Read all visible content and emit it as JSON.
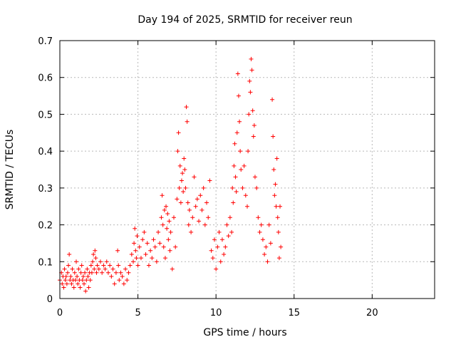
{
  "chart_data": {
    "type": "scatter",
    "title": "Day 194 of 2025, SRMTID for receiver reun",
    "xlabel": "GPS time / hours",
    "ylabel": "SRMTID / TECUs",
    "xlim": [
      0,
      24
    ],
    "ylim": [
      0,
      0.7
    ],
    "x_ticks": [
      0,
      5,
      10,
      15,
      20
    ],
    "x_tick_labels": [
      "0",
      "5",
      "10",
      "15",
      "20"
    ],
    "y_ticks": [
      0,
      0.1,
      0.2,
      0.3,
      0.4,
      0.5,
      0.6,
      0.7
    ],
    "y_tick_labels": [
      "0",
      "0.1",
      "0.2",
      "0.3",
      "0.4",
      "0.5",
      "0.6",
      "0.7"
    ],
    "grid": true,
    "marker": "+",
    "color": "#ff0000",
    "series": [
      {
        "name": "SRMTID",
        "points": [
          [
            0.0,
            0.05
          ],
          [
            0.1,
            0.07
          ],
          [
            0.15,
            0.04
          ],
          [
            0.2,
            0.06
          ],
          [
            0.25,
            0.03
          ],
          [
            0.3,
            0.08
          ],
          [
            0.35,
            0.05
          ],
          [
            0.4,
            0.06
          ],
          [
            0.45,
            0.04
          ],
          [
            0.5,
            0.07
          ],
          [
            0.55,
            0.09
          ],
          [
            0.6,
            0.12
          ],
          [
            0.65,
            0.05
          ],
          [
            0.7,
            0.06
          ],
          [
            0.75,
            0.04
          ],
          [
            0.8,
            0.08
          ],
          [
            0.85,
            0.05
          ],
          [
            0.9,
            0.03
          ],
          [
            0.95,
            0.07
          ],
          [
            1.0,
            0.05
          ],
          [
            1.05,
            0.1
          ],
          [
            1.1,
            0.06
          ],
          [
            1.15,
            0.04
          ],
          [
            1.2,
            0.08
          ],
          [
            1.25,
            0.05
          ],
          [
            1.3,
            0.03
          ],
          [
            1.35,
            0.07
          ],
          [
            1.4,
            0.09
          ],
          [
            1.45,
            0.05
          ],
          [
            1.5,
            0.06
          ],
          [
            1.55,
            0.04
          ],
          [
            1.6,
            0.07
          ],
          [
            1.65,
            0.02
          ],
          [
            1.7,
            0.05
          ],
          [
            1.75,
            0.08
          ],
          [
            1.8,
            0.06
          ],
          [
            1.85,
            0.03
          ],
          [
            1.9,
            0.07
          ],
          [
            1.95,
            0.05
          ],
          [
            2.0,
            0.09
          ],
          [
            2.05,
            0.07
          ],
          [
            2.1,
            0.1
          ],
          [
            2.15,
            0.12
          ],
          [
            2.2,
            0.08
          ],
          [
            2.25,
            0.13
          ],
          [
            2.3,
            0.11
          ],
          [
            2.35,
            0.07
          ],
          [
            2.4,
            0.09
          ],
          [
            2.5,
            0.08
          ],
          [
            2.6,
            0.1
          ],
          [
            2.7,
            0.07
          ],
          [
            2.8,
            0.09
          ],
          [
            2.9,
            0.08
          ],
          [
            3.0,
            0.1
          ],
          [
            3.1,
            0.07
          ],
          [
            3.2,
            0.09
          ],
          [
            3.3,
            0.06
          ],
          [
            3.4,
            0.08
          ],
          [
            3.5,
            0.04
          ],
          [
            3.6,
            0.07
          ],
          [
            3.7,
            0.13
          ],
          [
            3.75,
            0.09
          ],
          [
            3.8,
            0.05
          ],
          [
            3.9,
            0.07
          ],
          [
            4.0,
            0.06
          ],
          [
            4.1,
            0.04
          ],
          [
            4.2,
            0.08
          ],
          [
            4.3,
            0.05
          ],
          [
            4.4,
            0.07
          ],
          [
            4.5,
            0.09
          ],
          [
            4.6,
            0.12
          ],
          [
            4.7,
            0.1
          ],
          [
            4.75,
            0.15
          ],
          [
            4.8,
            0.19
          ],
          [
            4.85,
            0.13
          ],
          [
            4.9,
            0.11
          ],
          [
            4.95,
            0.17
          ],
          [
            5.0,
            0.09
          ],
          [
            5.1,
            0.14
          ],
          [
            5.2,
            0.11
          ],
          [
            5.3,
            0.16
          ],
          [
            5.4,
            0.18
          ],
          [
            5.5,
            0.12
          ],
          [
            5.6,
            0.15
          ],
          [
            5.7,
            0.09
          ],
          [
            5.8,
            0.13
          ],
          [
            5.9,
            0.11
          ],
          [
            6.0,
            0.16
          ],
          [
            6.1,
            0.14
          ],
          [
            6.2,
            0.1
          ],
          [
            6.3,
            0.18
          ],
          [
            6.4,
            0.15
          ],
          [
            6.5,
            0.22
          ],
          [
            6.55,
            0.28
          ],
          [
            6.6,
            0.2
          ],
          [
            6.65,
            0.14
          ],
          [
            6.7,
            0.24
          ],
          [
            6.75,
            0.11
          ],
          [
            6.8,
            0.25
          ],
          [
            6.85,
            0.19
          ],
          [
            6.9,
            0.23
          ],
          [
            6.95,
            0.16
          ],
          [
            7.0,
            0.21
          ],
          [
            7.05,
            0.13
          ],
          [
            7.1,
            0.18
          ],
          [
            7.2,
            0.08
          ],
          [
            7.3,
            0.22
          ],
          [
            7.4,
            0.14
          ],
          [
            7.5,
            0.27
          ],
          [
            7.55,
            0.4
          ],
          [
            7.6,
            0.45
          ],
          [
            7.65,
            0.3
          ],
          [
            7.7,
            0.36
          ],
          [
            7.75,
            0.26
          ],
          [
            7.8,
            0.32
          ],
          [
            7.85,
            0.34
          ],
          [
            7.9,
            0.29
          ],
          [
            7.95,
            0.38
          ],
          [
            8.0,
            0.35
          ],
          [
            8.05,
            0.3
          ],
          [
            8.1,
            0.52
          ],
          [
            8.15,
            0.48
          ],
          [
            8.2,
            0.26
          ],
          [
            8.25,
            0.2
          ],
          [
            8.3,
            0.24
          ],
          [
            8.4,
            0.18
          ],
          [
            8.5,
            0.22
          ],
          [
            8.6,
            0.33
          ],
          [
            8.7,
            0.25
          ],
          [
            8.8,
            0.27
          ],
          [
            8.9,
            0.21
          ],
          [
            9.0,
            0.28
          ],
          [
            9.1,
            0.24
          ],
          [
            9.2,
            0.3
          ],
          [
            9.3,
            0.2
          ],
          [
            9.4,
            0.26
          ],
          [
            9.5,
            0.22
          ],
          [
            9.6,
            0.32
          ],
          [
            9.7,
            0.13
          ],
          [
            9.8,
            0.11
          ],
          [
            9.9,
            0.16
          ],
          [
            10.0,
            0.08
          ],
          [
            10.1,
            0.14
          ],
          [
            10.2,
            0.18
          ],
          [
            10.3,
            0.1
          ],
          [
            10.4,
            0.16
          ],
          [
            10.5,
            0.12
          ],
          [
            10.6,
            0.14
          ],
          [
            10.7,
            0.2
          ],
          [
            10.8,
            0.17
          ],
          [
            10.9,
            0.22
          ],
          [
            11.0,
            0.18
          ],
          [
            11.05,
            0.3
          ],
          [
            11.1,
            0.26
          ],
          [
            11.15,
            0.36
          ],
          [
            11.2,
            0.42
          ],
          [
            11.25,
            0.33
          ],
          [
            11.3,
            0.29
          ],
          [
            11.35,
            0.45
          ],
          [
            11.4,
            0.61
          ],
          [
            11.45,
            0.55
          ],
          [
            11.5,
            0.48
          ],
          [
            11.55,
            0.4
          ],
          [
            11.6,
            0.35
          ],
          [
            11.7,
            0.3
          ],
          [
            11.8,
            0.36
          ],
          [
            11.9,
            0.28
          ],
          [
            12.0,
            0.25
          ],
          [
            12.05,
            0.4
          ],
          [
            12.1,
            0.5
          ],
          [
            12.15,
            0.59
          ],
          [
            12.2,
            0.56
          ],
          [
            12.25,
            0.65
          ],
          [
            12.3,
            0.62
          ],
          [
            12.35,
            0.51
          ],
          [
            12.4,
            0.44
          ],
          [
            12.45,
            0.47
          ],
          [
            12.5,
            0.33
          ],
          [
            12.6,
            0.3
          ],
          [
            12.7,
            0.22
          ],
          [
            12.8,
            0.18
          ],
          [
            12.9,
            0.2
          ],
          [
            13.0,
            0.16
          ],
          [
            13.1,
            0.12
          ],
          [
            13.2,
            0.14
          ],
          [
            13.3,
            0.1
          ],
          [
            13.4,
            0.2
          ],
          [
            13.5,
            0.15
          ],
          [
            13.6,
            0.54
          ],
          [
            13.65,
            0.44
          ],
          [
            13.7,
            0.35
          ],
          [
            13.75,
            0.28
          ],
          [
            13.8,
            0.31
          ],
          [
            13.85,
            0.25
          ],
          [
            13.9,
            0.38
          ],
          [
            13.95,
            0.22
          ],
          [
            14.0,
            0.18
          ],
          [
            14.05,
            0.11
          ],
          [
            14.1,
            0.25
          ],
          [
            14.15,
            0.14
          ]
        ]
      }
    ]
  }
}
